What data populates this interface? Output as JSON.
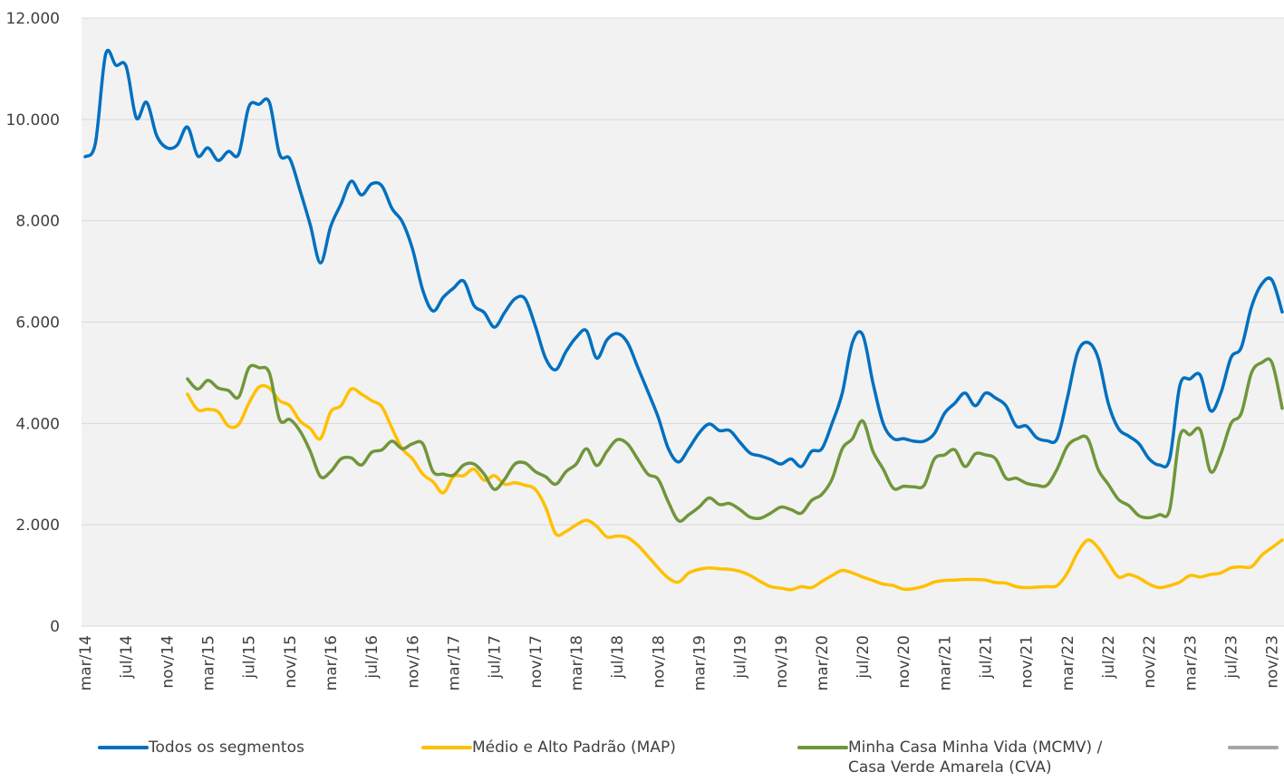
{
  "chart_data": {
    "type": "line",
    "categories": [
      "mar/14",
      null,
      null,
      null,
      "jul/14",
      null,
      null,
      null,
      "nov/14",
      null,
      null,
      null,
      "mar/15",
      null,
      null,
      null,
      "jul/15",
      null,
      null,
      null,
      "nov/15",
      null,
      null,
      null,
      "mar/16",
      null,
      null,
      null,
      "jul/16",
      null,
      null,
      null,
      "nov/16",
      null,
      null,
      null,
      "mar/17",
      null,
      null,
      null,
      "jul/17",
      null,
      null,
      null,
      "nov/17",
      null,
      null,
      null,
      "mar/18",
      null,
      null,
      null,
      "jul/18",
      null,
      null,
      null,
      "nov/18",
      null,
      null,
      null,
      "mar/19",
      null,
      null,
      null,
      "jul/19",
      null,
      null,
      null,
      "nov/19",
      null,
      null,
      null,
      "mar/20",
      null,
      null,
      null,
      "jul/20",
      null,
      null,
      null,
      "nov/20",
      null,
      null,
      null,
      "mar/21",
      null,
      null,
      null,
      "jul/21",
      null,
      null,
      null,
      "nov/21",
      null,
      null,
      null,
      "mar/22",
      null,
      null,
      null,
      "jul/22",
      null,
      null,
      null,
      "nov/22",
      null,
      null,
      null,
      "mar/23",
      null,
      null,
      null,
      "jul/23",
      null,
      null,
      null,
      "nov/23",
      null
    ],
    "series": [
      {
        "name": "Todos os segmentos",
        "color": "#0070c0",
        "values": [
          9264,
          9532,
          11285,
          11070,
          11050,
          10030,
          10340,
          9675,
          9440,
          9495,
          9850,
          9280,
          9440,
          9190,
          9370,
          9315,
          10250,
          10300,
          10340,
          9315,
          9225,
          8600,
          7920,
          7170,
          7890,
          8330,
          8780,
          8510,
          8730,
          8690,
          8240,
          7980,
          7440,
          6630,
          6220,
          6490,
          6670,
          6810,
          6330,
          6190,
          5900,
          6190,
          6460,
          6460,
          5920,
          5290,
          5060,
          5420,
          5700,
          5830,
          5290,
          5650,
          5775,
          5600,
          5115,
          4630,
          4130,
          3505,
          3240,
          3505,
          3810,
          3990,
          3860,
          3860,
          3630,
          3415,
          3360,
          3290,
          3200,
          3300,
          3150,
          3450,
          3500,
          4000,
          4600,
          5600,
          5750,
          4800,
          4000,
          3700,
          3700,
          3650,
          3650,
          3800,
          4200,
          4400,
          4600,
          4350,
          4600,
          4500,
          4350,
          3950,
          3950,
          3720,
          3660,
          3700,
          4500,
          5400,
          5600,
          5300,
          4400,
          3900,
          3750,
          3600,
          3300,
          3180,
          3300,
          4750,
          4880,
          4950,
          4250,
          4600,
          5300,
          5500,
          6300,
          6750,
          6830,
          6200
        ]
      },
      {
        "name": "Médio e Alto Padrão (MAP)",
        "color": "#ffc000",
        "values": [
          null,
          null,
          null,
          null,
          null,
          null,
          null,
          null,
          null,
          null,
          4580,
          4270,
          4280,
          4230,
          3950,
          3980,
          4400,
          4720,
          4700,
          4450,
          4350,
          4050,
          3900,
          3700,
          4230,
          4350,
          4680,
          4580,
          4450,
          4330,
          3900,
          3500,
          3300,
          3000,
          2850,
          2630,
          2950,
          2970,
          3100,
          2880,
          2970,
          2800,
          2830,
          2780,
          2700,
          2350,
          1820,
          1870,
          2000,
          2090,
          1970,
          1760,
          1780,
          1750,
          1600,
          1380,
          1150,
          950,
          870,
          1050,
          1120,
          1150,
          1130,
          1120,
          1080,
          1000,
          880,
          780,
          750,
          720,
          780,
          760,
          880,
          1000,
          1100,
          1050,
          970,
          900,
          830,
          800,
          730,
          740,
          790,
          870,
          900,
          910,
          920,
          920,
          910,
          860,
          850,
          780,
          760,
          770,
          780,
          800,
          1050,
          1450,
          1700,
          1550,
          1250,
          970,
          1020,
          950,
          830,
          760,
          800,
          870,
          1000,
          970,
          1020,
          1050,
          1150,
          1170,
          1170,
          1400,
          1550,
          1700
        ]
      },
      {
        "name": "Minha Casa Minha Vida (MCMV) / Casa Verde Amarela (CVA)",
        "color": "#70963a",
        "values": [
          null,
          null,
          null,
          null,
          null,
          null,
          null,
          null,
          null,
          null,
          4880,
          4680,
          4850,
          4700,
          4650,
          4520,
          5100,
          5100,
          5000,
          4080,
          4080,
          3850,
          3450,
          2950,
          3050,
          3300,
          3320,
          3180,
          3430,
          3480,
          3650,
          3500,
          3600,
          3600,
          3050,
          3000,
          2980,
          3180,
          3200,
          3000,
          2700,
          2900,
          3200,
          3220,
          3050,
          2950,
          2800,
          3050,
          3200,
          3500,
          3170,
          3450,
          3680,
          3600,
          3300,
          3000,
          2900,
          2450,
          2080,
          2200,
          2350,
          2530,
          2400,
          2420,
          2300,
          2150,
          2130,
          2230,
          2350,
          2300,
          2230,
          2480,
          2600,
          2900,
          3500,
          3700,
          4050,
          3450,
          3100,
          2720,
          2760,
          2750,
          2780,
          3300,
          3380,
          3480,
          3150,
          3400,
          3380,
          3300,
          2920,
          2920,
          2820,
          2780,
          2780,
          3100,
          3550,
          3700,
          3700,
          3100,
          2800,
          2500,
          2380,
          2180,
          2140,
          2200,
          2300,
          3750,
          3780,
          3870,
          3050,
          3400,
          4000,
          4200,
          5000,
          5200,
          5200,
          4300
        ]
      }
    ],
    "ylim": [
      0,
      12000
    ],
    "yticks": [
      0,
      {
        "value": 2000,
        "label": "2.000"
      },
      {
        "value": 4000,
        "label": "4.000"
      },
      {
        "value": 6000,
        "label": "6.000"
      },
      {
        "value": 8000,
        "label": "8.000"
      },
      {
        "value": 10000,
        "label": "10.000"
      },
      {
        "value": 12000,
        "label": "12.000"
      }
    ],
    "grid": true
  }
}
